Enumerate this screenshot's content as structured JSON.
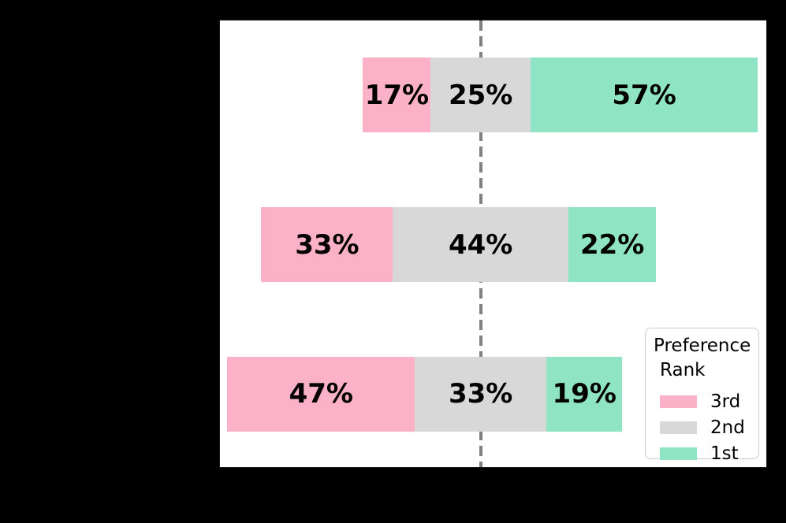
{
  "chart_data": {
    "type": "bar",
    "variant": "diverging-stacked-horizontal",
    "orientation": "horizontal",
    "title": "",
    "axes_text_visible": false,
    "category_labels_visible": false,
    "categories": [
      "",
      "",
      ""
    ],
    "series": [
      {
        "name": "3rd",
        "color": "#FBB1C8",
        "values": [
          17,
          33,
          47
        ]
      },
      {
        "name": "2nd",
        "color": "#D8D8D8",
        "values": [
          25,
          44,
          33
        ]
      },
      {
        "name": "1st",
        "color": "#8FE4C4",
        "values": [
          57,
          22,
          19
        ]
      }
    ],
    "data_labels": [
      [
        "17%",
        "25%",
        "57%"
      ],
      [
        "33%",
        "44%",
        "22%"
      ],
      [
        "47%",
        "33%",
        "19%"
      ]
    ],
    "zero_line": {
      "style": "dashed",
      "color": "#808080",
      "note": "vertical dashed line aligned with the center of each 2nd-rank segment"
    },
    "legend_position": "lower right",
    "grid": false
  },
  "legend": {
    "title_lines": [
      "Preference",
      "Rank"
    ],
    "items": [
      {
        "label": "3rd",
        "color": "#FBB1C8"
      },
      {
        "label": "2nd",
        "color": "#D8D8D8"
      },
      {
        "label": "1st",
        "color": "#8FE4C4"
      }
    ]
  },
  "colors": {
    "background": "#000000",
    "plot_background": "#ffffff",
    "label_text": "#000000",
    "dash_line": "#808080",
    "legend_border": "#cccccc"
  }
}
